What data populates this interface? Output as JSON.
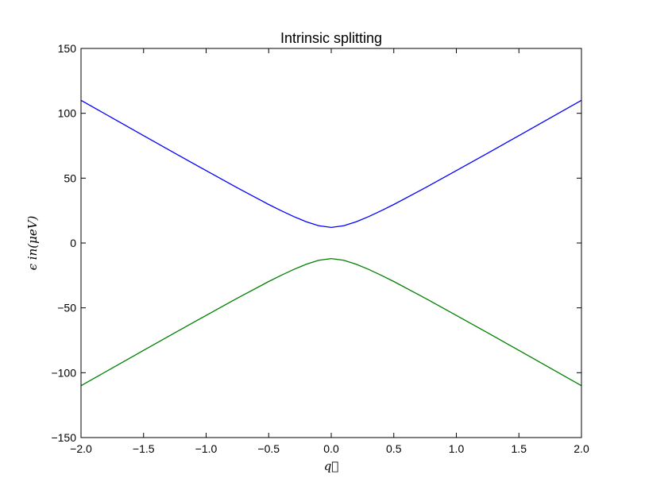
{
  "chart_data": {
    "type": "line",
    "title": "Intrinsic splitting",
    "xlabel": "q⃗",
    "ylabel": "ϵ in(μeV)",
    "xlim": [
      -2.0,
      2.0
    ],
    "ylim": [
      -150,
      150
    ],
    "x_ticks": [
      -2.0,
      -1.5,
      -1.0,
      -0.5,
      0.0,
      0.5,
      1.0,
      1.5,
      2.0
    ],
    "x_tick_labels": [
      "−2.0",
      "−1.5",
      "−1.0",
      "−0.5",
      "0.0",
      "0.5",
      "1.0",
      "1.5",
      "2.0"
    ],
    "y_ticks": [
      -150,
      -100,
      -50,
      0,
      50,
      100,
      150
    ],
    "y_tick_labels": [
      "−150",
      "−100",
      "−50",
      "0",
      "50",
      "100",
      "150"
    ],
    "grid": false,
    "series": [
      {
        "color": "#0000ff",
        "x": [
          -2.0,
          -1.75,
          -1.5,
          -1.25,
          -1.0,
          -0.75,
          -0.5,
          -0.4,
          -0.3,
          -0.2,
          -0.1,
          0.0,
          0.1,
          0.2,
          0.3,
          0.4,
          0.5,
          0.75,
          1.0,
          1.25,
          1.5,
          1.75,
          2.0
        ],
        "values": [
          110,
          96.4,
          82.8,
          69.2,
          55.8,
          42.5,
          29.7,
          24.9,
          20.4,
          16.4,
          13.3,
          12.0,
          13.3,
          16.4,
          20.4,
          24.9,
          29.7,
          42.5,
          55.8,
          69.2,
          82.8,
          96.4,
          110
        ]
      },
      {
        "color": "#008000",
        "x": [
          -2.0,
          -1.75,
          -1.5,
          -1.25,
          -1.0,
          -0.75,
          -0.5,
          -0.4,
          -0.3,
          -0.2,
          -0.1,
          0.0,
          0.1,
          0.2,
          0.3,
          0.4,
          0.5,
          0.75,
          1.0,
          1.25,
          1.5,
          1.75,
          2.0
        ],
        "values": [
          -110,
          -96.4,
          -82.8,
          -69.2,
          -55.8,
          -42.5,
          -29.7,
          -24.9,
          -20.4,
          -16.4,
          -13.3,
          -12.0,
          -13.3,
          -16.4,
          -20.4,
          -24.9,
          -29.7,
          -42.5,
          -55.8,
          -69.2,
          -82.8,
          -96.4,
          -110
        ]
      }
    ]
  }
}
